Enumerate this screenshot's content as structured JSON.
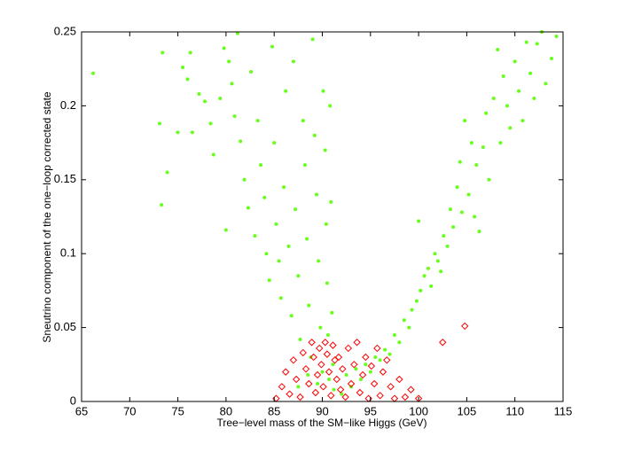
{
  "chart_data": {
    "type": "scatter",
    "xlabel": "Tree−level mass of the SM−like Higgs (GeV)",
    "ylabel": "Sneutrino component of the one−loop corrected state",
    "xlim": [
      65,
      115
    ],
    "xticks": [
      65,
      70,
      75,
      80,
      85,
      90,
      95,
      100,
      105,
      110,
      115
    ],
    "ylim": [
      0,
      0.25
    ],
    "yticks": [
      0,
      0.05,
      0.1,
      0.15,
      0.2,
      0.25
    ],
    "grid": false,
    "series": [
      {
        "color": "#66ff1a",
        "marker": "dot",
        "x": [
          66.2,
          73.1,
          73.3,
          73.4,
          73.9,
          75.0,
          75.5,
          76.0,
          76.3,
          76.5,
          77.2,
          77.8,
          78.4,
          78.7,
          79.4,
          79.8,
          80.0,
          80.3,
          80.6,
          80.9,
          81.2,
          81.5,
          81.9,
          82.3,
          82.6,
          83.0,
          83.3,
          83.6,
          84.0,
          84.2,
          84.5,
          84.8,
          85.0,
          85.2,
          85.5,
          85.7,
          86.0,
          86.2,
          86.5,
          86.8,
          87.0,
          87.2,
          87.5,
          87.7,
          88.0,
          88.2,
          88.4,
          88.6,
          88.8,
          89.0,
          89.2,
          89.4,
          89.6,
          89.8,
          90.0,
          90.1,
          90.3,
          90.4,
          90.5,
          90.6,
          90.7,
          90.8,
          90.9,
          91.0,
          91.1,
          91.2,
          89.5,
          88.5,
          87.5,
          92.0,
          92.5,
          93.0,
          93.5,
          94.0,
          94.5,
          95.0,
          95.5,
          96.0,
          96.5,
          97.0,
          97.5,
          98.0,
          98.5,
          99.0,
          99.3,
          99.8,
          100.0,
          100.2,
          100.6,
          101.0,
          101.3,
          101.7,
          102.0,
          102.3,
          102.6,
          103.0,
          103.3,
          103.6,
          104.0,
          104.3,
          104.5,
          104.8,
          105.2,
          105.5,
          105.8,
          106.0,
          106.3,
          106.7,
          107.0,
          107.3,
          107.8,
          108.2,
          108.5,
          108.8,
          109.2,
          109.5,
          110.0,
          110.4,
          110.8,
          111.2,
          111.6,
          112.0,
          112.3,
          112.8,
          113.2,
          113.8,
          114.3
        ],
        "values": [
          0.222,
          0.188,
          0.133,
          0.236,
          0.155,
          0.182,
          0.226,
          0.218,
          0.236,
          0.182,
          0.208,
          0.203,
          0.188,
          0.167,
          0.205,
          0.239,
          0.116,
          0.23,
          0.215,
          0.193,
          0.249,
          0.176,
          0.15,
          0.131,
          0.223,
          0.112,
          0.19,
          0.16,
          0.138,
          0.1,
          0.082,
          0.24,
          0.175,
          0.12,
          0.095,
          0.07,
          0.145,
          0.21,
          0.105,
          0.058,
          0.23,
          0.13,
          0.085,
          0.042,
          0.19,
          0.16,
          0.11,
          0.065,
          0.03,
          0.245,
          0.18,
          0.14,
          0.095,
          0.05,
          0.02,
          0.21,
          0.17,
          0.12,
          0.08,
          0.045,
          0.015,
          0.2,
          0.135,
          0.06,
          0.025,
          0.008,
          0.012,
          0.018,
          0.01,
          0.005,
          0.018,
          0.01,
          0.022,
          0.015,
          0.025,
          0.02,
          0.03,
          0.028,
          0.035,
          0.032,
          0.045,
          0.04,
          0.055,
          0.05,
          0.062,
          0.068,
          0.122,
          0.075,
          0.085,
          0.09,
          0.078,
          0.1,
          0.095,
          0.088,
          0.112,
          0.105,
          0.13,
          0.118,
          0.145,
          0.162,
          0.128,
          0.19,
          0.14,
          0.175,
          0.125,
          0.16,
          0.115,
          0.172,
          0.195,
          0.15,
          0.205,
          0.238,
          0.175,
          0.22,
          0.2,
          0.185,
          0.23,
          0.21,
          0.19,
          0.243,
          0.222,
          0.205,
          0.242,
          0.25,
          0.215,
          0.232,
          0.247
        ]
      },
      {
        "color": "#ff0000",
        "marker": "diamond",
        "x": [
          85.2,
          85.8,
          86.2,
          86.6,
          87.0,
          87.3,
          87.7,
          88.0,
          88.3,
          88.6,
          88.9,
          89.1,
          89.3,
          89.5,
          89.7,
          89.9,
          90.1,
          90.3,
          90.5,
          90.7,
          90.9,
          91.1,
          91.3,
          91.5,
          91.7,
          91.9,
          92.1,
          92.4,
          92.7,
          93.0,
          93.3,
          93.6,
          93.9,
          94.2,
          94.5,
          94.8,
          95.1,
          95.4,
          95.7,
          96.0,
          96.3,
          96.7,
          97.1,
          97.5,
          98.0,
          98.6,
          99.2,
          100.0,
          102.5,
          104.8
        ],
        "values": [
          0.002,
          0.01,
          0.02,
          0.005,
          0.028,
          0.015,
          0.003,
          0.033,
          0.022,
          0.012,
          0.04,
          0.03,
          0.006,
          0.018,
          0.036,
          0.025,
          0.01,
          0.04,
          0.032,
          0.02,
          0.004,
          0.038,
          0.028,
          0.015,
          0.03,
          0.008,
          0.022,
          0.003,
          0.036,
          0.012,
          0.025,
          0.04,
          0.006,
          0.018,
          0.03,
          0.002,
          0.024,
          0.012,
          0.036,
          0.004,
          0.02,
          0.028,
          0.01,
          0.002,
          0.015,
          0.003,
          0.008,
          0.002,
          0.04,
          0.051
        ]
      }
    ]
  }
}
